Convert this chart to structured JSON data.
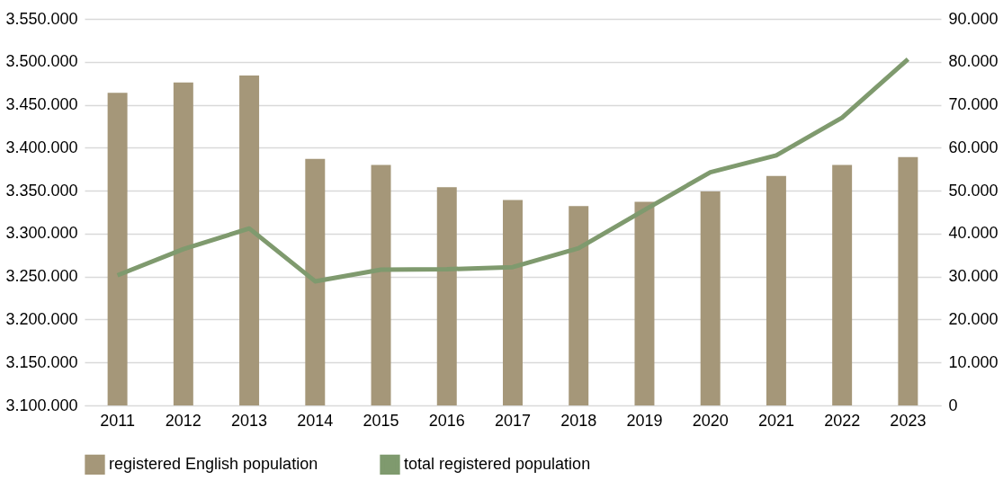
{
  "chart_data": {
    "type": "bar",
    "categories": [
      "2011",
      "2012",
      "2013",
      "2014",
      "2015",
      "2016",
      "2017",
      "2018",
      "2019",
      "2020",
      "2021",
      "2022",
      "2023"
    ],
    "series": [
      {
        "name": "registered English population",
        "color": "#a59779",
        "values": [
          3464000,
          3476000,
          3484000,
          3387000,
          3380000,
          3354000,
          3339000,
          3332000,
          3337000,
          3349000,
          3367000,
          3380000,
          3389000
        ]
      },
      {
        "name": "total registered population",
        "type": "line",
        "axis": "y2",
        "color": "#7f9a6e",
        "values": [
          30300,
          36400,
          41200,
          28900,
          31600,
          31700,
          32200,
          36600,
          45500,
          54300,
          58200,
          67000,
          80600
        ]
      }
    ],
    "ylim": [
      3100000,
      3550000
    ],
    "yticks": [
      {
        "value": 3100000,
        "label": "3.100.000"
      },
      {
        "value": 3150000,
        "label": "3.150.000"
      },
      {
        "value": 3200000,
        "label": "3.200.000"
      },
      {
        "value": 3250000,
        "label": "3.250.000"
      },
      {
        "value": 3300000,
        "label": "3.300.000"
      },
      {
        "value": 3350000,
        "label": "3.350.000"
      },
      {
        "value": 3400000,
        "label": "3.400.000"
      },
      {
        "value": 3450000,
        "label": "3.450.000"
      },
      {
        "value": 3500000,
        "label": "3.500.000"
      },
      {
        "value": 3550000,
        "label": "3.550.000"
      }
    ],
    "y2lim": [
      0,
      90000
    ],
    "y2ticks": [
      0,
      {
        "value": 10000,
        "label": "10.000"
      },
      {
        "value": 20000,
        "label": "20.000"
      },
      {
        "value": 30000,
        "label": "30.000"
      },
      {
        "value": 40000,
        "label": "40.000"
      },
      {
        "value": 50000,
        "label": "50.000"
      },
      {
        "value": 60000,
        "label": "60.000"
      },
      {
        "value": 70000,
        "label": "70.000"
      },
      {
        "value": 80000,
        "label": "80.000"
      },
      {
        "value": 90000,
        "label": "90.000"
      }
    ],
    "grid": "y",
    "legend": "bottom",
    "line_style": "solid",
    "marker": "none"
  }
}
